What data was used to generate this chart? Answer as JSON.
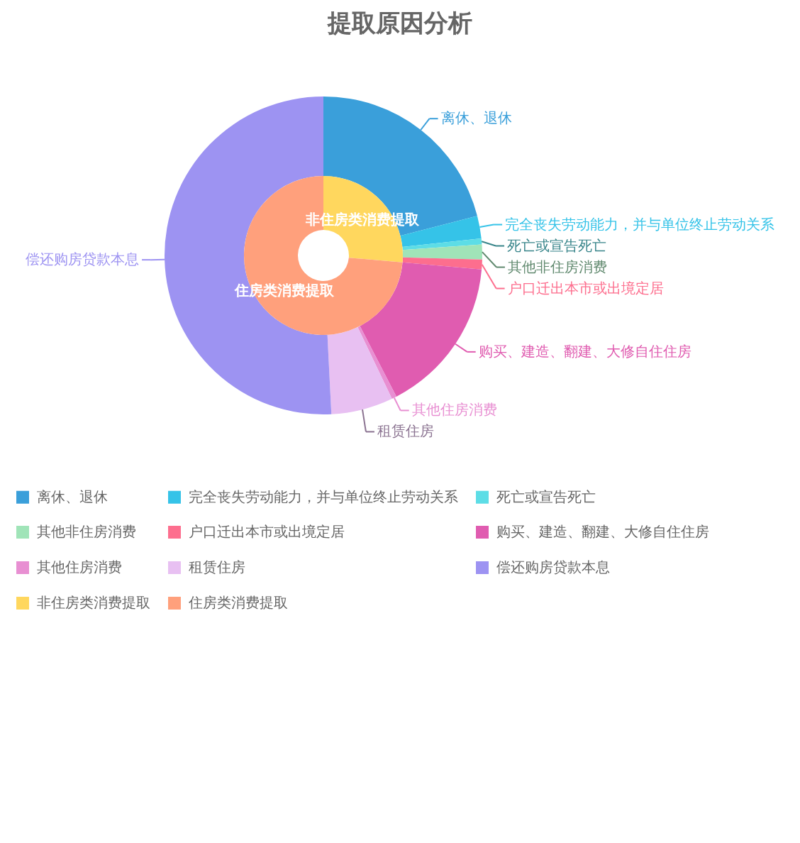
{
  "chart_data": {
    "type": "donut",
    "title": "提取原因分析",
    "categories": [
      "离休、退休",
      "完全丧失劳动能力，并与单位终止劳动关系",
      "死亡或宣告死亡",
      "其他非住房消费",
      "户口迁出本市或出境定居",
      "购买、建造、翻建、大修自住住房",
      "其他住房消费",
      "租赁住房",
      "偿还购房贷款本息",
      "非住房类消费提取",
      "住房类消费提取"
    ],
    "colors": [
      "#3a9fda",
      "#35c3e8",
      "#5ddde6",
      "#a0e4b8",
      "#fd6e8e",
      "#e05cb0",
      "#e88fd2",
      "#e8c0f2",
      "#9d93f2",
      "#ffd75e",
      "#ffa07c"
    ],
    "series": [
      {
        "values": [
          21,
          2.3,
          0.6,
          1.5,
          1,
          16,
          0.5,
          6.3,
          50.8,
          null,
          null
        ]
      },
      {
        "values": [
          null,
          null,
          null,
          null,
          null,
          null,
          null,
          null,
          null,
          26.4,
          73.6
        ]
      }
    ],
    "legend": "bottom"
  }
}
